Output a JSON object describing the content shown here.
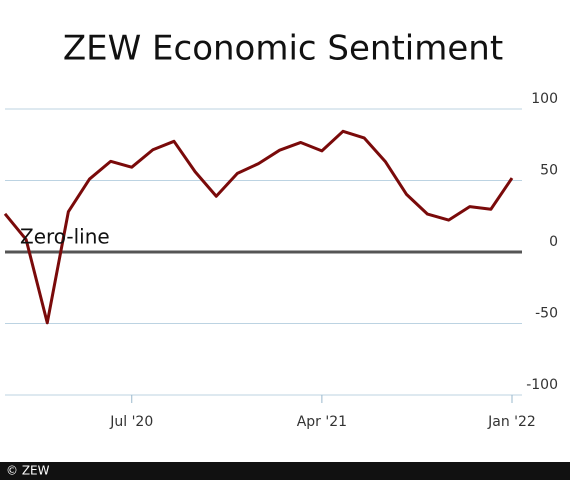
{
  "chart_data": {
    "type": "line",
    "title": "ZEW Economic Sentiment",
    "annotation": "Zero-line",
    "source": "© ZEW",
    "categories": [
      null,
      null,
      null,
      null,
      null,
      null,
      "Jul '20",
      null,
      null,
      null,
      null,
      null,
      null,
      null,
      null,
      "Apr '21",
      null,
      null,
      null,
      null,
      null,
      null,
      null,
      null,
      "Jan '22"
    ],
    "series": [
      {
        "name": "ZEW Economic Sentiment",
        "color": "#7a0a0a",
        "values": [
          26.7,
          8.7,
          -49.5,
          28.2,
          51.0,
          63.4,
          59.3,
          71.5,
          77.4,
          56.1,
          39.0,
          55.0,
          61.8,
          71.2,
          76.6,
          70.7,
          84.4,
          79.8,
          63.3,
          40.4,
          26.5,
          22.3,
          31.7,
          29.9,
          51.7
        ]
      }
    ],
    "ylim": [
      -100,
      100
    ],
    "yticks": [
      -100,
      -50,
      0,
      50,
      100
    ],
    "grid": true
  }
}
